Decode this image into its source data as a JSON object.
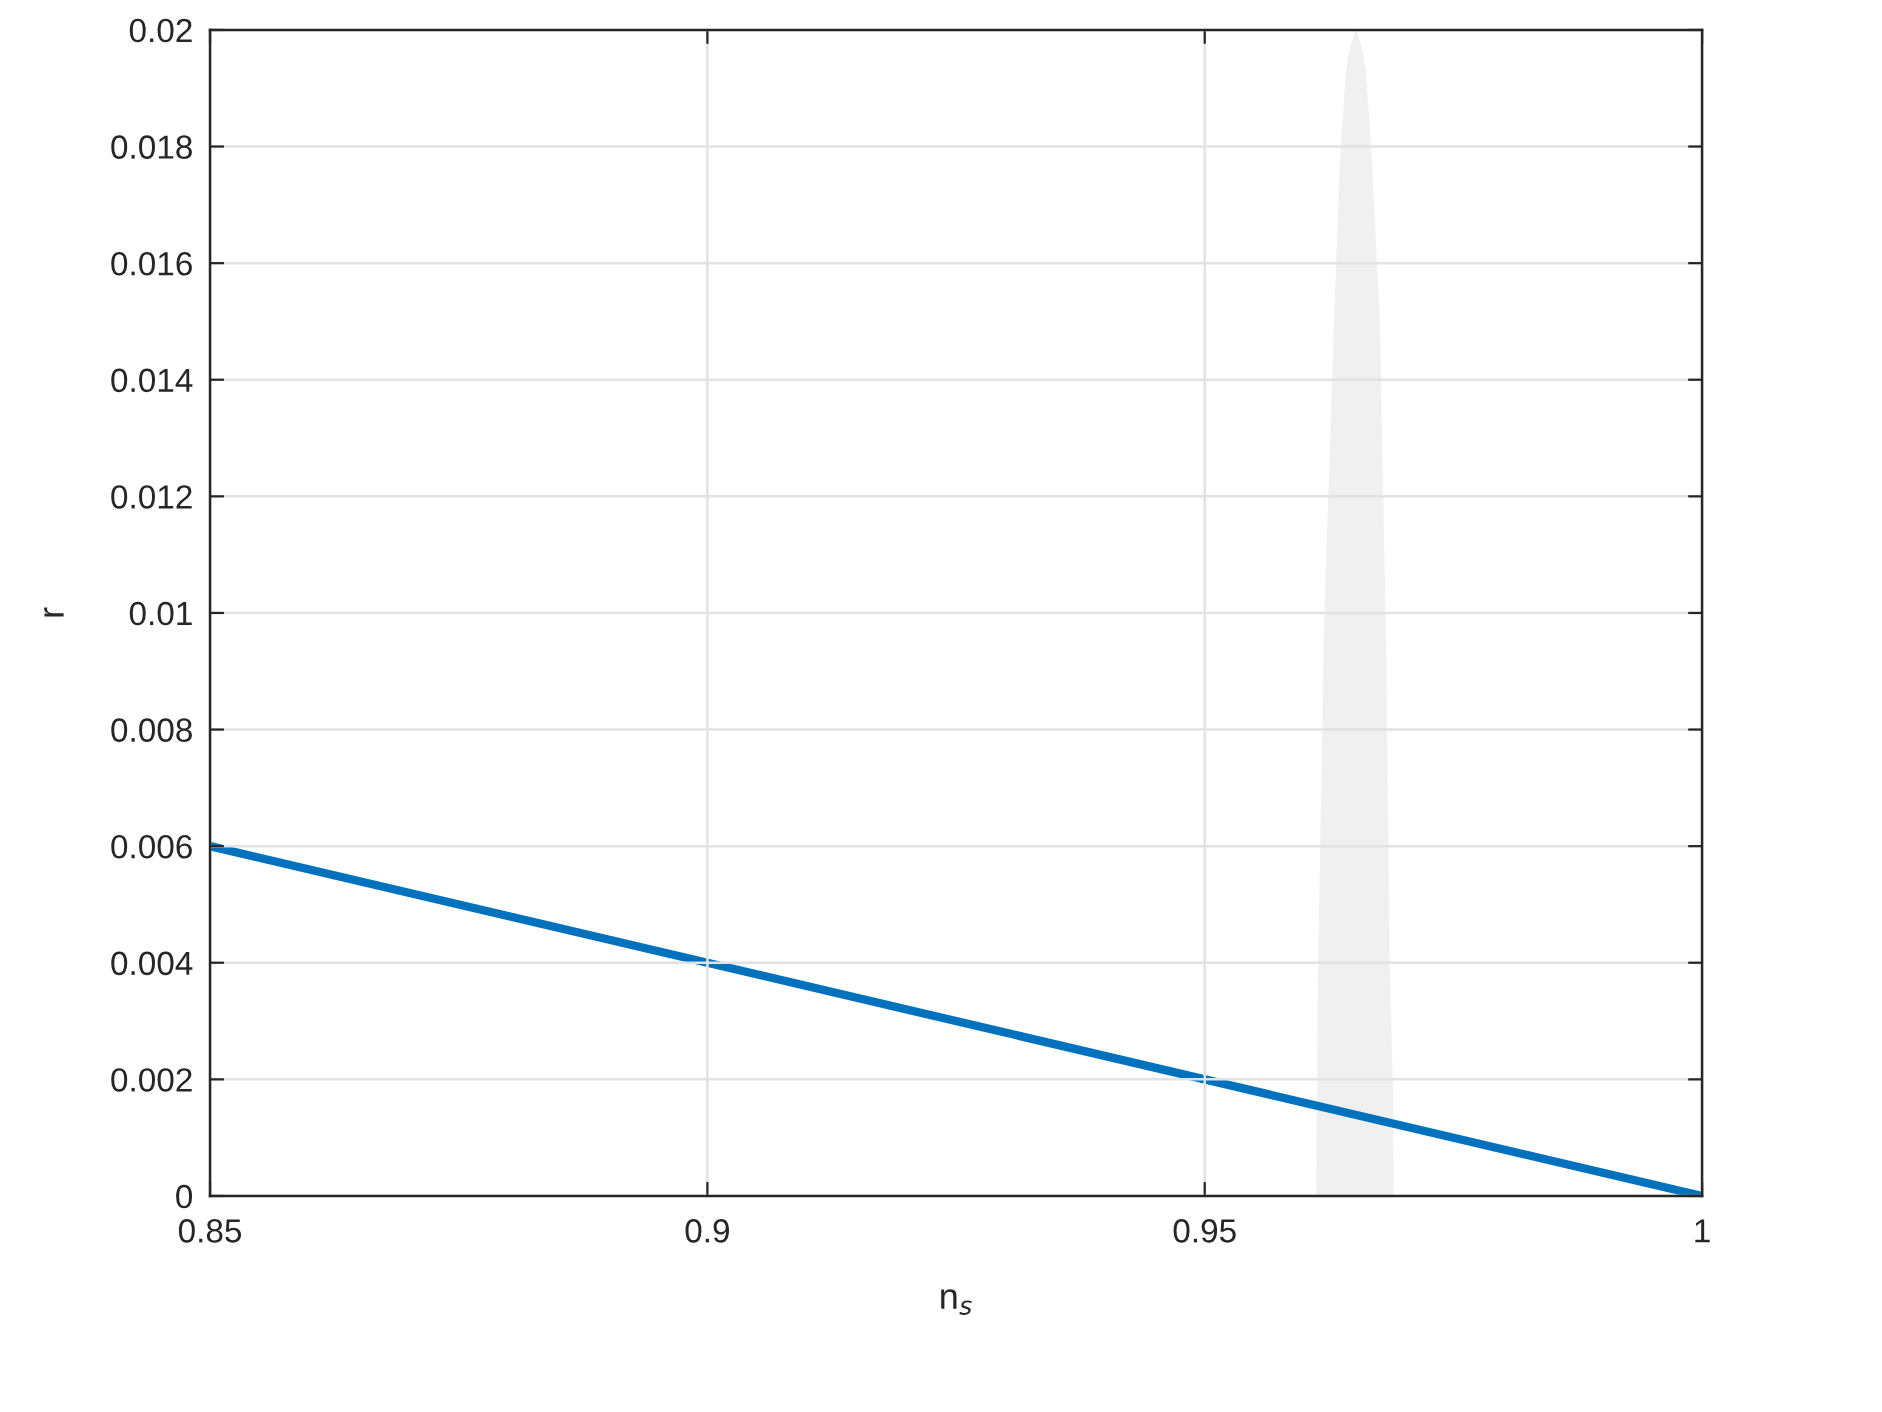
{
  "chart_data": {
    "type": "line",
    "xlabel": "n$_{s}$",
    "ylabel": "r",
    "xlim": [
      0.85,
      1
    ],
    "xticks": [
      0.85,
      0.9,
      0.95,
      1
    ],
    "ylim": [
      0,
      0.02
    ],
    "yticks": [
      0,
      0.002,
      0.004,
      0.006,
      0.008,
      0.01,
      0.012,
      0.014,
      0.016,
      0.018,
      0.02
    ],
    "grid": true,
    "series": [
      {
        "type": "area",
        "color": "#f0f0f0",
        "x": [
          0.9612,
          0.9613,
          0.9614,
          0.962,
          0.963,
          0.9636,
          0.9642,
          0.9646,
          0.9652,
          0.9658,
          0.9662,
          0.9668,
          0.9676,
          0.9682,
          0.9686,
          0.9689,
          0.969
        ],
        "values": [
          0,
          0.002,
          0.004,
          0.0098,
          0.015,
          0.0178,
          0.0193,
          0.0197,
          0.02,
          0.0197,
          0.0193,
          0.0178,
          0.015,
          0.0098,
          0.004,
          0.002,
          0
        ]
      },
      {
        "color": "#0072bd",
        "x": [
          0.85,
          0.9,
          0.95,
          1
        ],
        "values": [
          0.006,
          0.004,
          0.002,
          0
        ]
      }
    ]
  }
}
